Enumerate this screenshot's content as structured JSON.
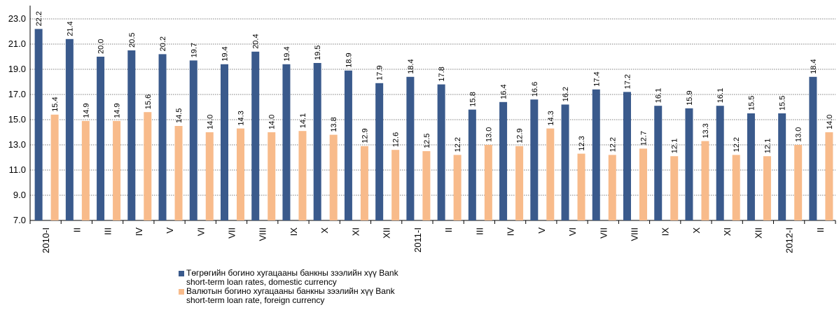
{
  "chart_data": {
    "type": "bar",
    "categories": [
      "2010-I",
      "II",
      "III",
      "IV",
      "V",
      "VI",
      "VII",
      "VIII",
      "IX",
      "X",
      "XI",
      "XII",
      "2011-I",
      "II",
      "III",
      "IV",
      "V",
      "VI",
      "VII",
      "VIII",
      "IX",
      "X",
      "XI",
      "XII",
      "2012-I",
      "II"
    ],
    "series": [
      {
        "name": "Төгрөгийн богино хугацааны банкны зээлийн хүү Bank short-term loan rates, domestic currency",
        "color": "#3a5a8c",
        "values": [
          22.2,
          21.4,
          20.0,
          20.5,
          20.2,
          19.7,
          19.4,
          20.4,
          19.4,
          19.5,
          18.9,
          17.9,
          18.4,
          17.8,
          15.8,
          16.4,
          16.6,
          16.2,
          17.4,
          17.2,
          16.1,
          15.9,
          16.1,
          15.5,
          15.5,
          18.4
        ]
      },
      {
        "name": "Валютын богино хугацааны банкны зээлийн хүү Bank short-term loan rate, foreign currency",
        "color": "#f8bb8b",
        "values": [
          15.4,
          14.9,
          14.9,
          15.6,
          14.5,
          14.0,
          14.3,
          14.0,
          14.1,
          13.8,
          12.9,
          12.6,
          12.5,
          12.2,
          13.0,
          12.9,
          14.3,
          12.3,
          12.2,
          12.7,
          12.1,
          13.3,
          12.2,
          12.1,
          13.0,
          14.0
        ]
      }
    ],
    "yticks": [
      "7.0",
      "9.0",
      "11.0",
      "13.0",
      "15.0",
      "17.0",
      "19.0",
      "21.0",
      "23.0"
    ],
    "ylim": [
      7,
      23.5
    ],
    "grid": true,
    "legend_position": "bottom-left"
  },
  "legend": [
    {
      "line1": "Төгрөгийн богино хугацааны банкны зээлийн хүү Bank",
      "line2": "short-term loan rates, domestic currency"
    },
    {
      "line1": "Валютын богино хугацааны банкны зээлийн хүү Bank",
      "line2": "short-term loan rate, foreign currency"
    }
  ]
}
